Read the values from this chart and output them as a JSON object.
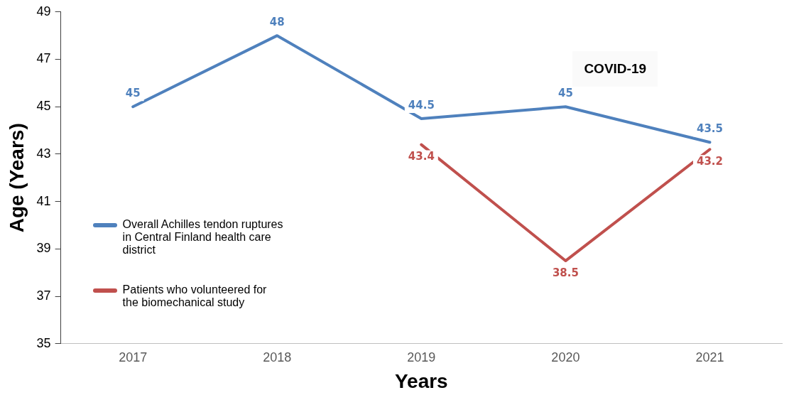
{
  "chart_data": {
    "type": "line",
    "xlabel": "Years",
    "ylabel": "Age (Years)",
    "categories": [
      "2017",
      "2018",
      "2019",
      "2020",
      "2021"
    ],
    "series": [
      {
        "name": "Overall Achilles tendon ruptures in Central Finland health care district",
        "color": "#4f81bd",
        "values": [
          45,
          48,
          44.5,
          45,
          43.5
        ]
      },
      {
        "name": "Patients who volunteered for the biomechanical study",
        "color": "#c0504d",
        "values": [
          null,
          null,
          43.4,
          38.5,
          43.2
        ]
      }
    ],
    "ylim": [
      35,
      49
    ],
    "yticks": [
      35,
      37,
      39,
      41,
      43,
      45,
      47,
      49
    ],
    "grid": false,
    "legend": "left",
    "line_style": "solid",
    "data_labels": true,
    "annotations": [
      "COVID-19"
    ]
  }
}
